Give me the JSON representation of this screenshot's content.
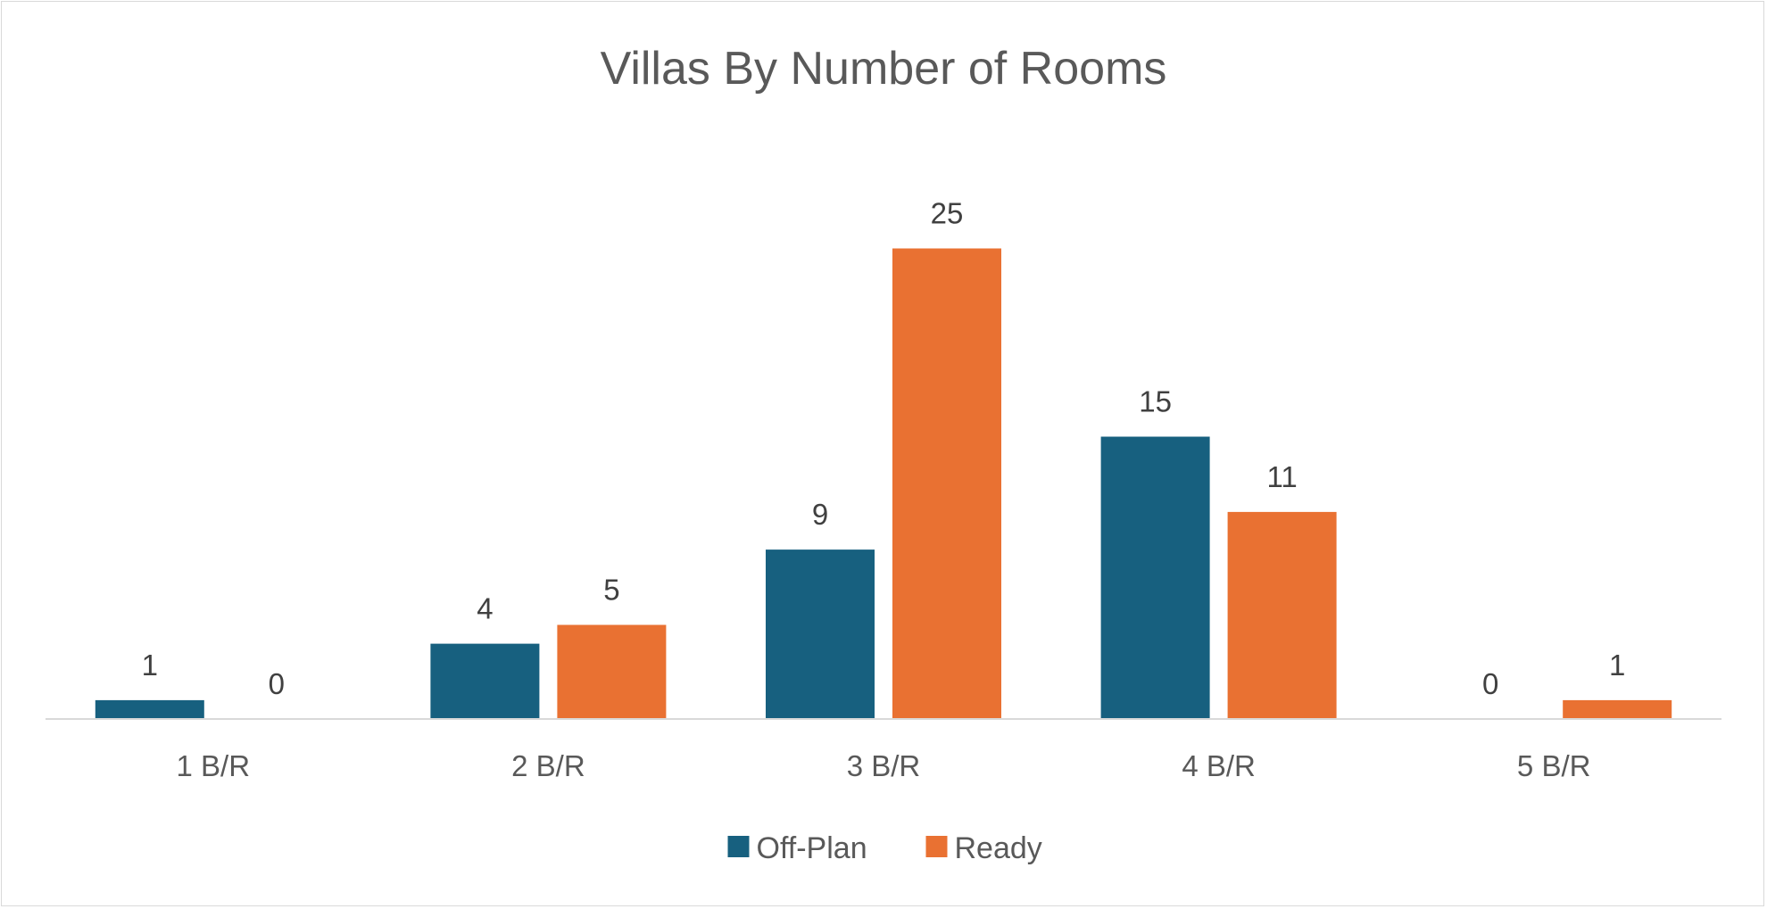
{
  "chart_data": {
    "type": "bar",
    "title": "Villas By Number of Rooms",
    "xlabel": "",
    "ylabel": "",
    "categories": [
      "1 B/R",
      "2 B/R",
      "3 B/R",
      "4 B/R",
      "5 B/R"
    ],
    "series": [
      {
        "name": "Off-Plan",
        "values": [
          1,
          4,
          9,
          15,
          0
        ],
        "color": "#17607f"
      },
      {
        "name": "Ready",
        "values": [
          0,
          5,
          25,
          11,
          1
        ],
        "color": "#e97132"
      }
    ],
    "ylim": [
      0,
      25
    ],
    "grid": false,
    "data_labels": true,
    "legend_position": "bottom",
    "axis_color": "#d9d9d9"
  }
}
